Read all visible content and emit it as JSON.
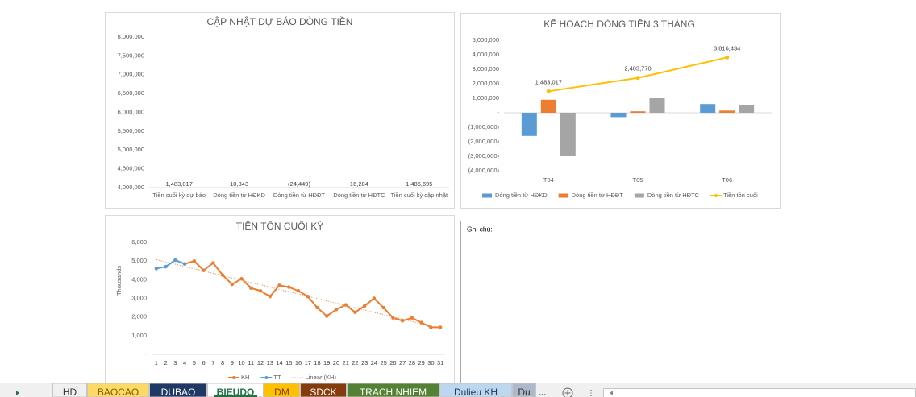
{
  "chart_data": [
    {
      "type": "bar",
      "title": "CẬP NHẬT DỰ BÁO DÒNG TIỀN",
      "categories": [
        "Tiền cuối kỳ dự báo",
        "Dòng tiền từ HĐKD",
        "Dòng tiền từ HĐĐT",
        "Dòng tiền từ HĐTC",
        "Tiền cuối kỳ cập nhật"
      ],
      "values": [
        1483017,
        10843,
        -24449,
        16284,
        1485695
      ],
      "value_labels": [
        "1,483,017",
        "10,843",
        "(24,449)",
        "16,284",
        "1,485,695"
      ],
      "color": "#5b9bd5",
      "ylim": [
        4000000,
        8000000
      ],
      "yticks": [
        {
          "value": 4000000,
          "label": "4,000,000"
        },
        {
          "value": 4500000,
          "label": "4,500,000"
        },
        {
          "value": 5000000,
          "label": "5,000,000"
        },
        {
          "value": 5500000,
          "label": "5,500,000"
        },
        {
          "value": 6000000,
          "label": "6,000,000"
        },
        {
          "value": 6500000,
          "label": "6,500,000"
        },
        {
          "value": 7000000,
          "label": "7,000,000"
        },
        {
          "value": 7500000,
          "label": "7,500,000"
        },
        {
          "value": 8000000,
          "label": "8,000,000"
        }
      ]
    },
    {
      "type": "combo",
      "title": "KẾ HOẠCH DÒNG TIỀN 3 THÁNG",
      "categories": [
        "T04",
        "T05",
        "T06"
      ],
      "series": [
        {
          "name": "Dòng tiền từ HĐKD",
          "color": "#5b9bd5",
          "kind": "bar",
          "values": [
            -1600000,
            -300000,
            600000
          ]
        },
        {
          "name": "Dòng tiền từ HĐĐT",
          "color": "#ed7d31",
          "kind": "bar",
          "values": [
            900000,
            100000,
            150000
          ]
        },
        {
          "name": "Dòng tiền từ HĐTC",
          "color": "#a5a5a5",
          "kind": "bar",
          "values": [
            -3000000,
            1000000,
            550000
          ]
        },
        {
          "name": "Tiền tồn cuối",
          "color": "#ffc000",
          "kind": "line",
          "values": [
            1483017,
            2403770,
            3816434
          ],
          "value_labels": [
            "1,483,017",
            "2,403,770",
            "3,816,434"
          ]
        }
      ],
      "ylim": [
        -4000000,
        5000000
      ],
      "yticks": [
        {
          "value": -4000000,
          "label": "(4,000,000)"
        },
        {
          "value": -3000000,
          "label": "(3,000,000)"
        },
        {
          "value": -2000000,
          "label": "(2,000,000)"
        },
        {
          "value": -1000000,
          "label": "(1,000,000)"
        },
        {
          "value": 0,
          "label": "-"
        },
        {
          "value": 1000000,
          "label": "1,000,000"
        },
        {
          "value": 2000000,
          "label": "2,000,000"
        },
        {
          "value": 3000000,
          "label": "3,000,000"
        },
        {
          "value": 4000000,
          "label": "4,000,000"
        },
        {
          "value": 5000000,
          "label": "5,000,000"
        }
      ],
      "legend": "bottom"
    },
    {
      "type": "line",
      "title": "TIỀN TỒN CUỐI KỲ",
      "y_label": "Thousands",
      "x": [
        1,
        2,
        3,
        4,
        5,
        6,
        7,
        8,
        9,
        10,
        11,
        12,
        13,
        14,
        15,
        16,
        17,
        18,
        19,
        20,
        21,
        22,
        23,
        24,
        25,
        26,
        27,
        28,
        29,
        30,
        31
      ],
      "series": [
        {
          "name": "KH",
          "color": "#ed7d31",
          "values": [
            null,
            null,
            null,
            4850,
            5000,
            4500,
            4900,
            4250,
            3750,
            4050,
            3550,
            3400,
            3100,
            3700,
            3600,
            3400,
            3100,
            2500,
            2050,
            2400,
            2650,
            2250,
            2600,
            3000,
            2500,
            1950,
            1800,
            1950,
            1700,
            1450,
            1450
          ]
        },
        {
          "name": "TT",
          "color": "#5b9bd5",
          "values": [
            4600,
            4700,
            5050,
            4850,
            null,
            null,
            null,
            null,
            null,
            null,
            null,
            null,
            null,
            null,
            null,
            null,
            null,
            null,
            null,
            null,
            null,
            null,
            null,
            null,
            null,
            null,
            null,
            null,
            null,
            null,
            null
          ]
        }
      ],
      "trendline": {
        "name": "Linear (KH)",
        "series": 0,
        "color": "#ed7d31"
      },
      "ylim": [
        0,
        6000
      ],
      "yticks": [
        {
          "value": 0,
          "label": "-"
        },
        {
          "value": 1000,
          "label": "1,000"
        },
        {
          "value": 2000,
          "label": "2,000"
        },
        {
          "value": 3000,
          "label": "3,000"
        },
        {
          "value": 4000,
          "label": "4,000"
        },
        {
          "value": 5000,
          "label": "5,000"
        },
        {
          "value": 6000,
          "label": "6,000"
        }
      ],
      "legend": "bottom"
    }
  ],
  "note": {
    "label": "Ghi chú:"
  },
  "sheet_tabs": [
    {
      "name": "HD"
    },
    {
      "name": "BAOCAO",
      "color": "#ffd966",
      "text_color": "#7f6000"
    },
    {
      "name": "DUBAO",
      "color": "#1f3864",
      "text_color": "#ffffff"
    },
    {
      "name": "BIEUDO",
      "active": true,
      "text_color": "#217346"
    },
    {
      "name": "DM",
      "color": "#ffc000",
      "text_color": "#7f3f00"
    },
    {
      "name": "SDCK",
      "color": "#843c0c",
      "text_color": "#ffffff"
    },
    {
      "name": "TRACH NHIEM",
      "color": "#548235",
      "text_color": "#ffffff"
    },
    {
      "name": "Dulieu KH",
      "color": "#bdd7ee",
      "text_color": "#1f3864"
    },
    {
      "name": "Du",
      "color": "#adb9ca",
      "text_color": "#333333"
    }
  ],
  "more_tabs": "..."
}
